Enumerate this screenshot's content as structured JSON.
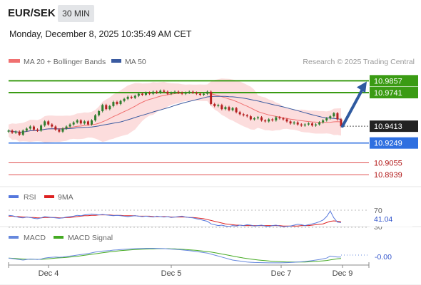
{
  "header": {
    "symbol": "EUR/SEK",
    "interval": "30 MIN",
    "datetime": "Monday, December 8, 2025 10:35:49 AM CET",
    "credit": "Research © 2025 Trading Central"
  },
  "colors": {
    "resistance": "#3a9b13",
    "support": "#2e6fe0",
    "lower_support": "#e05050",
    "candle_up": "#2f7d2f",
    "candle_down": "#b52020",
    "ma20": "#f07070",
    "ma50": "#3a5aa0",
    "bands": "#fbd4d4",
    "arrow": "#2f5aa0",
    "rsi": "#5577dd",
    "rsi_ma": "#dd2222",
    "macd": "#6688dd",
    "macd_signal": "#44aa22"
  },
  "chart_data": [
    {
      "type": "candlestick",
      "legend": [
        {
          "name": "MA 20 + Bollinger Bands",
          "color": "#f07070"
        },
        {
          "name": "MA 50",
          "color": "#3a5aa0"
        }
      ],
      "x_ticks": [
        "Dec 4",
        "Dec 5",
        "Dec 7",
        "Dec 9"
      ],
      "ylim": [
        10.885,
        10.995
      ],
      "current_price": "10.9413",
      "levels": [
        {
          "value": "10.9857",
          "kind": "resistance"
        },
        {
          "value": "10.9741",
          "kind": "resistance"
        },
        {
          "value": "10.9249",
          "kind": "support"
        },
        {
          "value": "10.9055",
          "kind": "lower_support"
        },
        {
          "value": "10.8939",
          "kind": "lower_support"
        }
      ],
      "forecast_arrow": {
        "from": 10.9413,
        "to": 10.985
      },
      "series": [
        {
          "name": "Price",
          "values": [
            10.937,
            10.935,
            10.936,
            10.933,
            10.937,
            10.939,
            10.941,
            10.938,
            10.937,
            10.942,
            10.946,
            10.943,
            10.941,
            10.938,
            10.936,
            10.939,
            10.941,
            10.943,
            10.945,
            10.947,
            10.944,
            10.946,
            10.943,
            10.947,
            10.952,
            10.956,
            10.962,
            10.958,
            10.961,
            10.965,
            10.963,
            10.966,
            10.968,
            10.97,
            10.969,
            10.971,
            10.973,
            10.972,
            10.974,
            10.973,
            10.975,
            10.974,
            10.976,
            10.975,
            10.973,
            10.974,
            10.975,
            10.974,
            10.973,
            10.974,
            10.975,
            10.974,
            10.973,
            10.972,
            10.973,
            10.975,
            10.963,
            10.961,
            10.962,
            10.958,
            10.96,
            10.957,
            10.959,
            10.955,
            10.953,
            10.952,
            10.951,
            10.948,
            10.949,
            10.95,
            10.947,
            10.946,
            10.948,
            10.947,
            10.95,
            10.949,
            10.948,
            10.946,
            10.944,
            10.945,
            10.943,
            10.942,
            10.943,
            10.944,
            10.942,
            10.943,
            10.945,
            10.947,
            10.949,
            10.951,
            10.954,
            10.948,
            10.9413
          ]
        }
      ]
    },
    {
      "type": "line",
      "legend": [
        {
          "name": "RSI",
          "color": "#5577dd"
        },
        {
          "name": "9MA",
          "color": "#dd2222"
        }
      ],
      "y_labels": [
        "70",
        "41.04",
        "30"
      ],
      "series": [
        {
          "name": "RSI",
          "values": [
            58,
            57,
            55,
            53,
            52,
            54,
            53,
            51,
            50,
            52,
            55,
            54,
            53,
            52,
            51,
            52,
            54,
            55,
            56,
            58,
            57,
            59,
            60,
            61,
            60,
            59,
            60,
            59,
            58,
            57,
            58,
            57,
            56,
            55,
            56,
            57,
            56,
            55,
            56,
            55,
            54,
            56,
            55,
            54,
            55,
            53,
            54,
            55,
            56,
            54,
            53,
            52,
            50,
            48,
            46,
            44,
            38,
            36,
            34,
            35,
            33,
            32,
            34,
            33,
            35,
            34,
            36,
            35,
            33,
            34,
            35,
            33,
            32,
            34,
            35,
            33,
            31,
            32,
            33,
            35,
            37,
            36,
            34,
            36,
            38,
            40,
            43,
            47,
            55,
            68,
            52,
            42,
            41
          ]
        },
        {
          "name": "9MA",
          "values": [
            56,
            56,
            55,
            55,
            54,
            54,
            53,
            53,
            52,
            52,
            53,
            53,
            53,
            53,
            52,
            52,
            53,
            53,
            54,
            55,
            56,
            57,
            57,
            58,
            58,
            59,
            59,
            59,
            59,
            58,
            58,
            58,
            57,
            57,
            57,
            57,
            56,
            56,
            56,
            56,
            55,
            55,
            55,
            55,
            55,
            54,
            54,
            54,
            54,
            54,
            53,
            53,
            52,
            51,
            50,
            48,
            46,
            44,
            42,
            40,
            38,
            37,
            36,
            35,
            35,
            34,
            34,
            34,
            34,
            34,
            34,
            34,
            34,
            34,
            34,
            34,
            33,
            33,
            33,
            33,
            33,
            34,
            34,
            34,
            35,
            36,
            37,
            38,
            41,
            44,
            45,
            44,
            43
          ]
        }
      ]
    },
    {
      "type": "line",
      "legend": [
        {
          "name": "MACD",
          "color": "#6688dd"
        },
        {
          "name": "MACD Signal",
          "color": "#44aa22"
        }
      ],
      "y_labels": [
        "-0.00"
      ],
      "series": [
        {
          "name": "MACD",
          "values": [
            -0.3,
            -0.35,
            -0.4,
            -0.45,
            -0.5,
            -0.45,
            -0.4,
            -0.42,
            -0.45,
            -0.4,
            -0.3,
            -0.25,
            -0.22,
            -0.2,
            -0.22,
            -0.2,
            -0.15,
            -0.1,
            -0.05,
            0,
            0.05,
            0.1,
            0.15,
            0.22,
            0.3,
            0.35,
            0.4,
            0.42,
            0.45,
            0.5,
            0.52,
            0.55,
            0.58,
            0.6,
            0.62,
            0.64,
            0.65,
            0.66,
            0.67,
            0.68,
            0.68,
            0.67,
            0.66,
            0.65,
            0.63,
            0.6,
            0.58,
            0.55,
            0.52,
            0.48,
            0.45,
            0.4,
            0.35,
            0.3,
            0.25,
            0.2,
            0.1,
            0,
            -0.1,
            -0.2,
            -0.3,
            -0.4,
            -0.5,
            -0.55,
            -0.6,
            -0.65,
            -0.7,
            -0.72,
            -0.74,
            -0.75,
            -0.76,
            -0.77,
            -0.78,
            -0.78,
            -0.78,
            -0.78,
            -0.77,
            -0.76,
            -0.74,
            -0.72,
            -0.7,
            -0.67,
            -0.64,
            -0.6,
            -0.55,
            -0.5,
            -0.45,
            -0.38,
            -0.3,
            -0.1,
            -0.15,
            -0.2,
            -0.2
          ]
        },
        {
          "name": "MACD Signal",
          "values": [
            -0.3,
            -0.32,
            -0.35,
            -0.38,
            -0.4,
            -0.42,
            -0.42,
            -0.42,
            -0.43,
            -0.43,
            -0.4,
            -0.37,
            -0.34,
            -0.31,
            -0.28,
            -0.26,
            -0.23,
            -0.2,
            -0.16,
            -0.12,
            -0.07,
            -0.02,
            0.03,
            0.08,
            0.13,
            0.18,
            0.23,
            0.28,
            0.32,
            0.36,
            0.4,
            0.44,
            0.47,
            0.5,
            0.53,
            0.55,
            0.57,
            0.59,
            0.61,
            0.62,
            0.63,
            0.64,
            0.64,
            0.64,
            0.64,
            0.63,
            0.62,
            0.6,
            0.58,
            0.56,
            0.53,
            0.5,
            0.47,
            0.43,
            0.39,
            0.35,
            0.3,
            0.24,
            0.18,
            0.11,
            0.04,
            -0.03,
            -0.1,
            -0.17,
            -0.23,
            -0.29,
            -0.35,
            -0.4,
            -0.45,
            -0.49,
            -0.53,
            -0.56,
            -0.59,
            -0.62,
            -0.64,
            -0.66,
            -0.68,
            -0.69,
            -0.7,
            -0.7,
            -0.7,
            -0.7,
            -0.69,
            -0.68,
            -0.66,
            -0.64,
            -0.61,
            -0.58,
            -0.54,
            -0.48,
            -0.43,
            -0.38,
            -0.34
          ]
        }
      ]
    }
  ]
}
